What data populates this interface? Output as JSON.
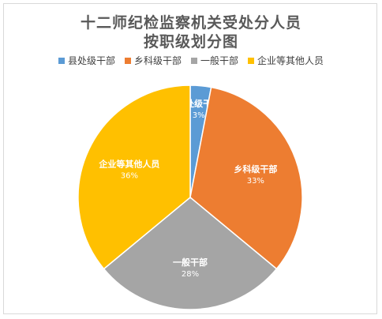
{
  "chart_data": {
    "type": "pie",
    "title": "十二师纪检监察机关受处分人员",
    "subtitle": "按职级划分图",
    "legend_position": "top",
    "slices": [
      {
        "label": "县处级干部",
        "value": 3,
        "pct_text": "3%",
        "color": "#5b9bd5"
      },
      {
        "label": "乡科级干部",
        "value": 33,
        "pct_text": "33%",
        "color": "#ed7d31"
      },
      {
        "label": "一般干部",
        "value": 28,
        "pct_text": "28%",
        "color": "#a5a5a5"
      },
      {
        "label": "企业等其他人员",
        "value": 36,
        "pct_text": "36%",
        "color": "#ffc000"
      }
    ]
  }
}
